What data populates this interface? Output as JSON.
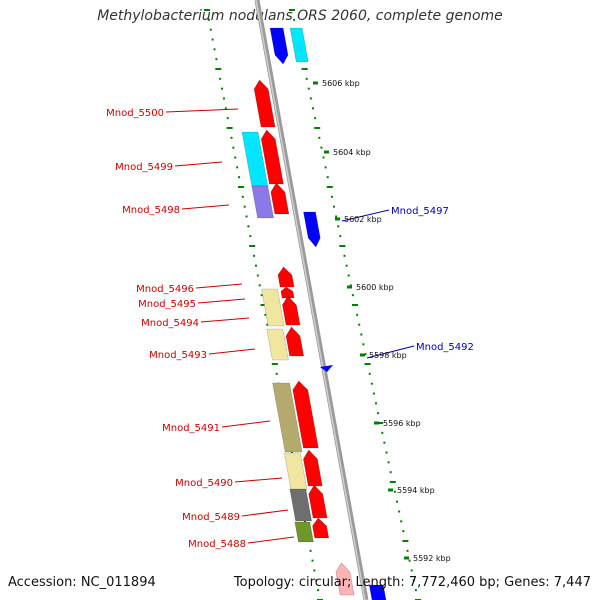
{
  "title": "Methylobacterium nodulans ORS 2060, complete genome",
  "accession_text": "Accession: NC_011894",
  "summary_text": "Topology: circular; Length: 7,772,460 bp; Genes: 7,447",
  "colors": {
    "backbone": "#9a9a9a",
    "forward_gene": "#ff0000",
    "reverse_gene": "#0000ff",
    "cyan_feature": "#00e6ff",
    "purple_feature": "#8c78e6",
    "khaki_feature": "#f0e6a0",
    "olive_feature": "#b4aa6e",
    "gray_feature": "#6e6e6e",
    "green_feature": "#6e9628",
    "ruler_tick": "#008000",
    "label_red": "#cc0000",
    "label_blue": "#0000aa"
  },
  "ruler": {
    "marks": [
      {
        "label": "5606 kbp",
        "kbp": 5606
      },
      {
        "label": "5604 kbp",
        "kbp": 5604
      },
      {
        "label": "5602 kbp",
        "kbp": 5602
      },
      {
        "label": "5600 kbp",
        "kbp": 5600
      },
      {
        "label": "5598 kbp",
        "kbp": 5598
      },
      {
        "label": "5596 kbp",
        "kbp": 5596
      },
      {
        "label": "5594 kbp",
        "kbp": 5594
      },
      {
        "label": "5592 kbp",
        "kbp": 5592
      }
    ]
  },
  "gene_labels": [
    {
      "text": "Mnod_5500",
      "side": "left"
    },
    {
      "text": "Mnod_5499",
      "side": "left"
    },
    {
      "text": "Mnod_5498",
      "side": "left"
    },
    {
      "text": "Mnod_5497",
      "side": "right"
    },
    {
      "text": "Mnod_5496",
      "side": "left"
    },
    {
      "text": "Mnod_5495",
      "side": "left"
    },
    {
      "text": "Mnod_5494",
      "side": "left"
    },
    {
      "text": "Mnod_5493",
      "side": "left"
    },
    {
      "text": "Mnod_5492",
      "side": "right"
    },
    {
      "text": "Mnod_5491",
      "side": "left"
    },
    {
      "text": "Mnod_5490",
      "side": "left"
    },
    {
      "text": "Mnod_5489",
      "side": "left"
    },
    {
      "text": "Mnod_5488",
      "side": "left"
    }
  ]
}
